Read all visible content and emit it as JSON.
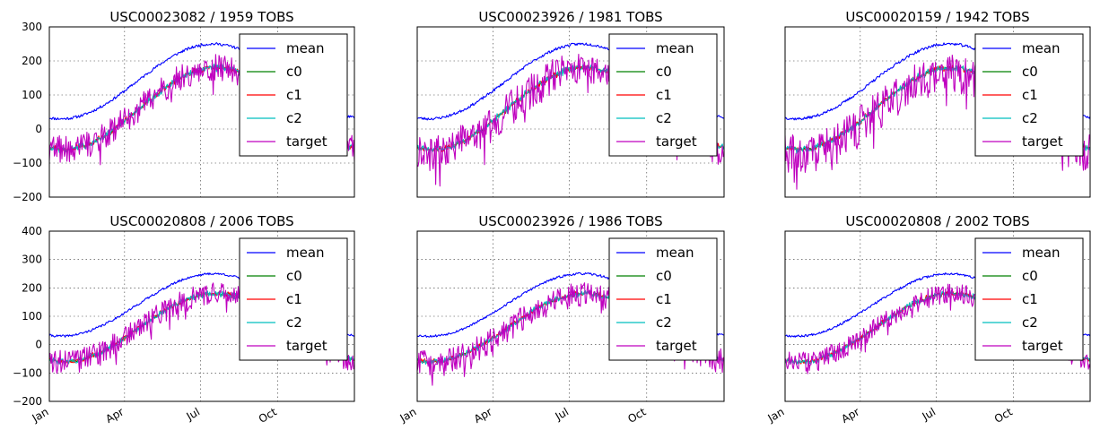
{
  "chart_data": [
    {
      "type": "line",
      "title": "USC00023082 / 1959    TOBS",
      "ylim": [
        -200,
        300
      ],
      "yticks": [
        "300",
        "200",
        "100",
        "0",
        "−100",
        "−200"
      ],
      "xticks": [],
      "legend": "upper-right",
      "grid": true,
      "seed": 11,
      "target_amp": 40,
      "target_offset": 0
    },
    {
      "type": "line",
      "title": "USC00023926 / 1981    TOBS",
      "ylim": [
        -200,
        300
      ],
      "yticks": [],
      "xticks": [],
      "legend": "upper-right",
      "grid": true,
      "seed": 23,
      "target_amp": 55,
      "target_offset": -5
    },
    {
      "type": "line",
      "title": "USC00020159 / 1942    TOBS",
      "ylim": [
        -200,
        300
      ],
      "yticks": [],
      "xticks": [],
      "legend": "upper-right",
      "grid": true,
      "seed": 37,
      "target_amp": 60,
      "target_offset": -15
    },
    {
      "type": "line",
      "title": "USC00020808 / 2006    TOBS",
      "ylim": [
        -200,
        400
      ],
      "yticks": [
        "400",
        "300",
        "200",
        "100",
        "0",
        "−100",
        "−200"
      ],
      "xticks": [
        "Jan",
        "Apr",
        "Jul",
        "Oct"
      ],
      "legend": "upper-right",
      "grid": true,
      "seed": 41,
      "target_amp": 40,
      "target_offset": 0
    },
    {
      "type": "line",
      "title": "USC00023926 / 1986    TOBS",
      "ylim": [
        -200,
        400
      ],
      "yticks": [],
      "xticks": [
        "Jan",
        "Apr",
        "Jul",
        "Oct"
      ],
      "legend": "upper-right",
      "grid": true,
      "seed": 53,
      "target_amp": 45,
      "target_offset": -5
    },
    {
      "type": "line",
      "title": "USC00020808 / 2002    TOBS",
      "ylim": [
        -200,
        400
      ],
      "yticks": [],
      "xticks": [
        "Jan",
        "Apr",
        "Jul",
        "Oct"
      ],
      "legend": "upper-right",
      "grid": true,
      "seed": 67,
      "target_amp": 35,
      "target_offset": 0
    }
  ],
  "series": [
    {
      "name": "mean",
      "color": "#0000ff"
    },
    {
      "name": "c0",
      "color": "#008000"
    },
    {
      "name": "c1",
      "color": "#ff0000"
    },
    {
      "name": "c2",
      "color": "#00bfbf"
    },
    {
      "name": "target",
      "color": "#bf00bf"
    }
  ],
  "x_range": [
    0,
    365
  ],
  "x_tick_days": [
    0,
    90,
    181,
    273
  ]
}
